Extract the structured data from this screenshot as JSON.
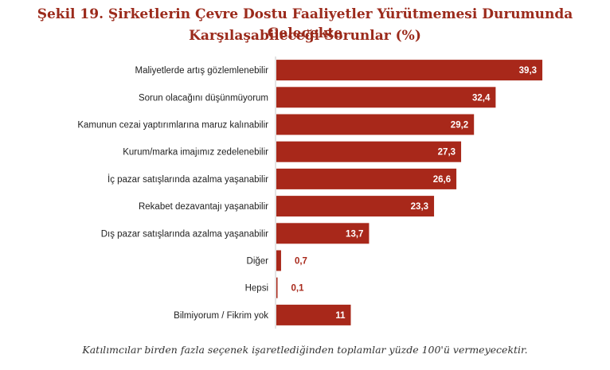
{
  "chart_data": {
    "type": "bar",
    "orientation": "horizontal",
    "title_line1": "Şekil 19. Şirketlerin Çevre Dostu Faaliyetler Yürütmemesi Durumunda Gelecekte",
    "title_line2": "Karşılaşabileceği Sorunlar (%)",
    "categories": [
      "Maliyetlerde artış gözlemlenebilir",
      "Sorun olacağını düşünmüyorum",
      "Kamunun cezai yaptırımlarına maruz kalınabilir",
      "Kurum/marka imajımız zedelenebilir",
      "İç pazar satışlarında azalma yaşanabilir",
      "Rekabet dezavantajı yaşanabilir",
      "Dış pazar satışlarında azalma yaşanabilir",
      "Diğer",
      "Hepsi",
      "Bilmiyorum / Fikrim yok"
    ],
    "values": [
      39.3,
      32.4,
      29.2,
      27.3,
      26.6,
      23.3,
      13.7,
      0.7,
      0.1,
      11
    ],
    "value_labels": [
      "39,3",
      "32,4",
      "29,2",
      "27,3",
      "26,6",
      "23,3",
      "13,7",
      "0,7",
      "0,1",
      "11"
    ],
    "xlim": [
      0,
      40
    ],
    "grid": false,
    "legend": "none",
    "footnote": "Katılımcılar birden fazla seçenek işaretlediğinden toplamlar yüzde 100'ü vermeyecektir."
  },
  "colors": {
    "bar": "#a8281a",
    "title": "#9b2a1b",
    "axis": "#c9c9c9",
    "label_inside": "#ffffff",
    "label_outside": "#a8281a"
  }
}
